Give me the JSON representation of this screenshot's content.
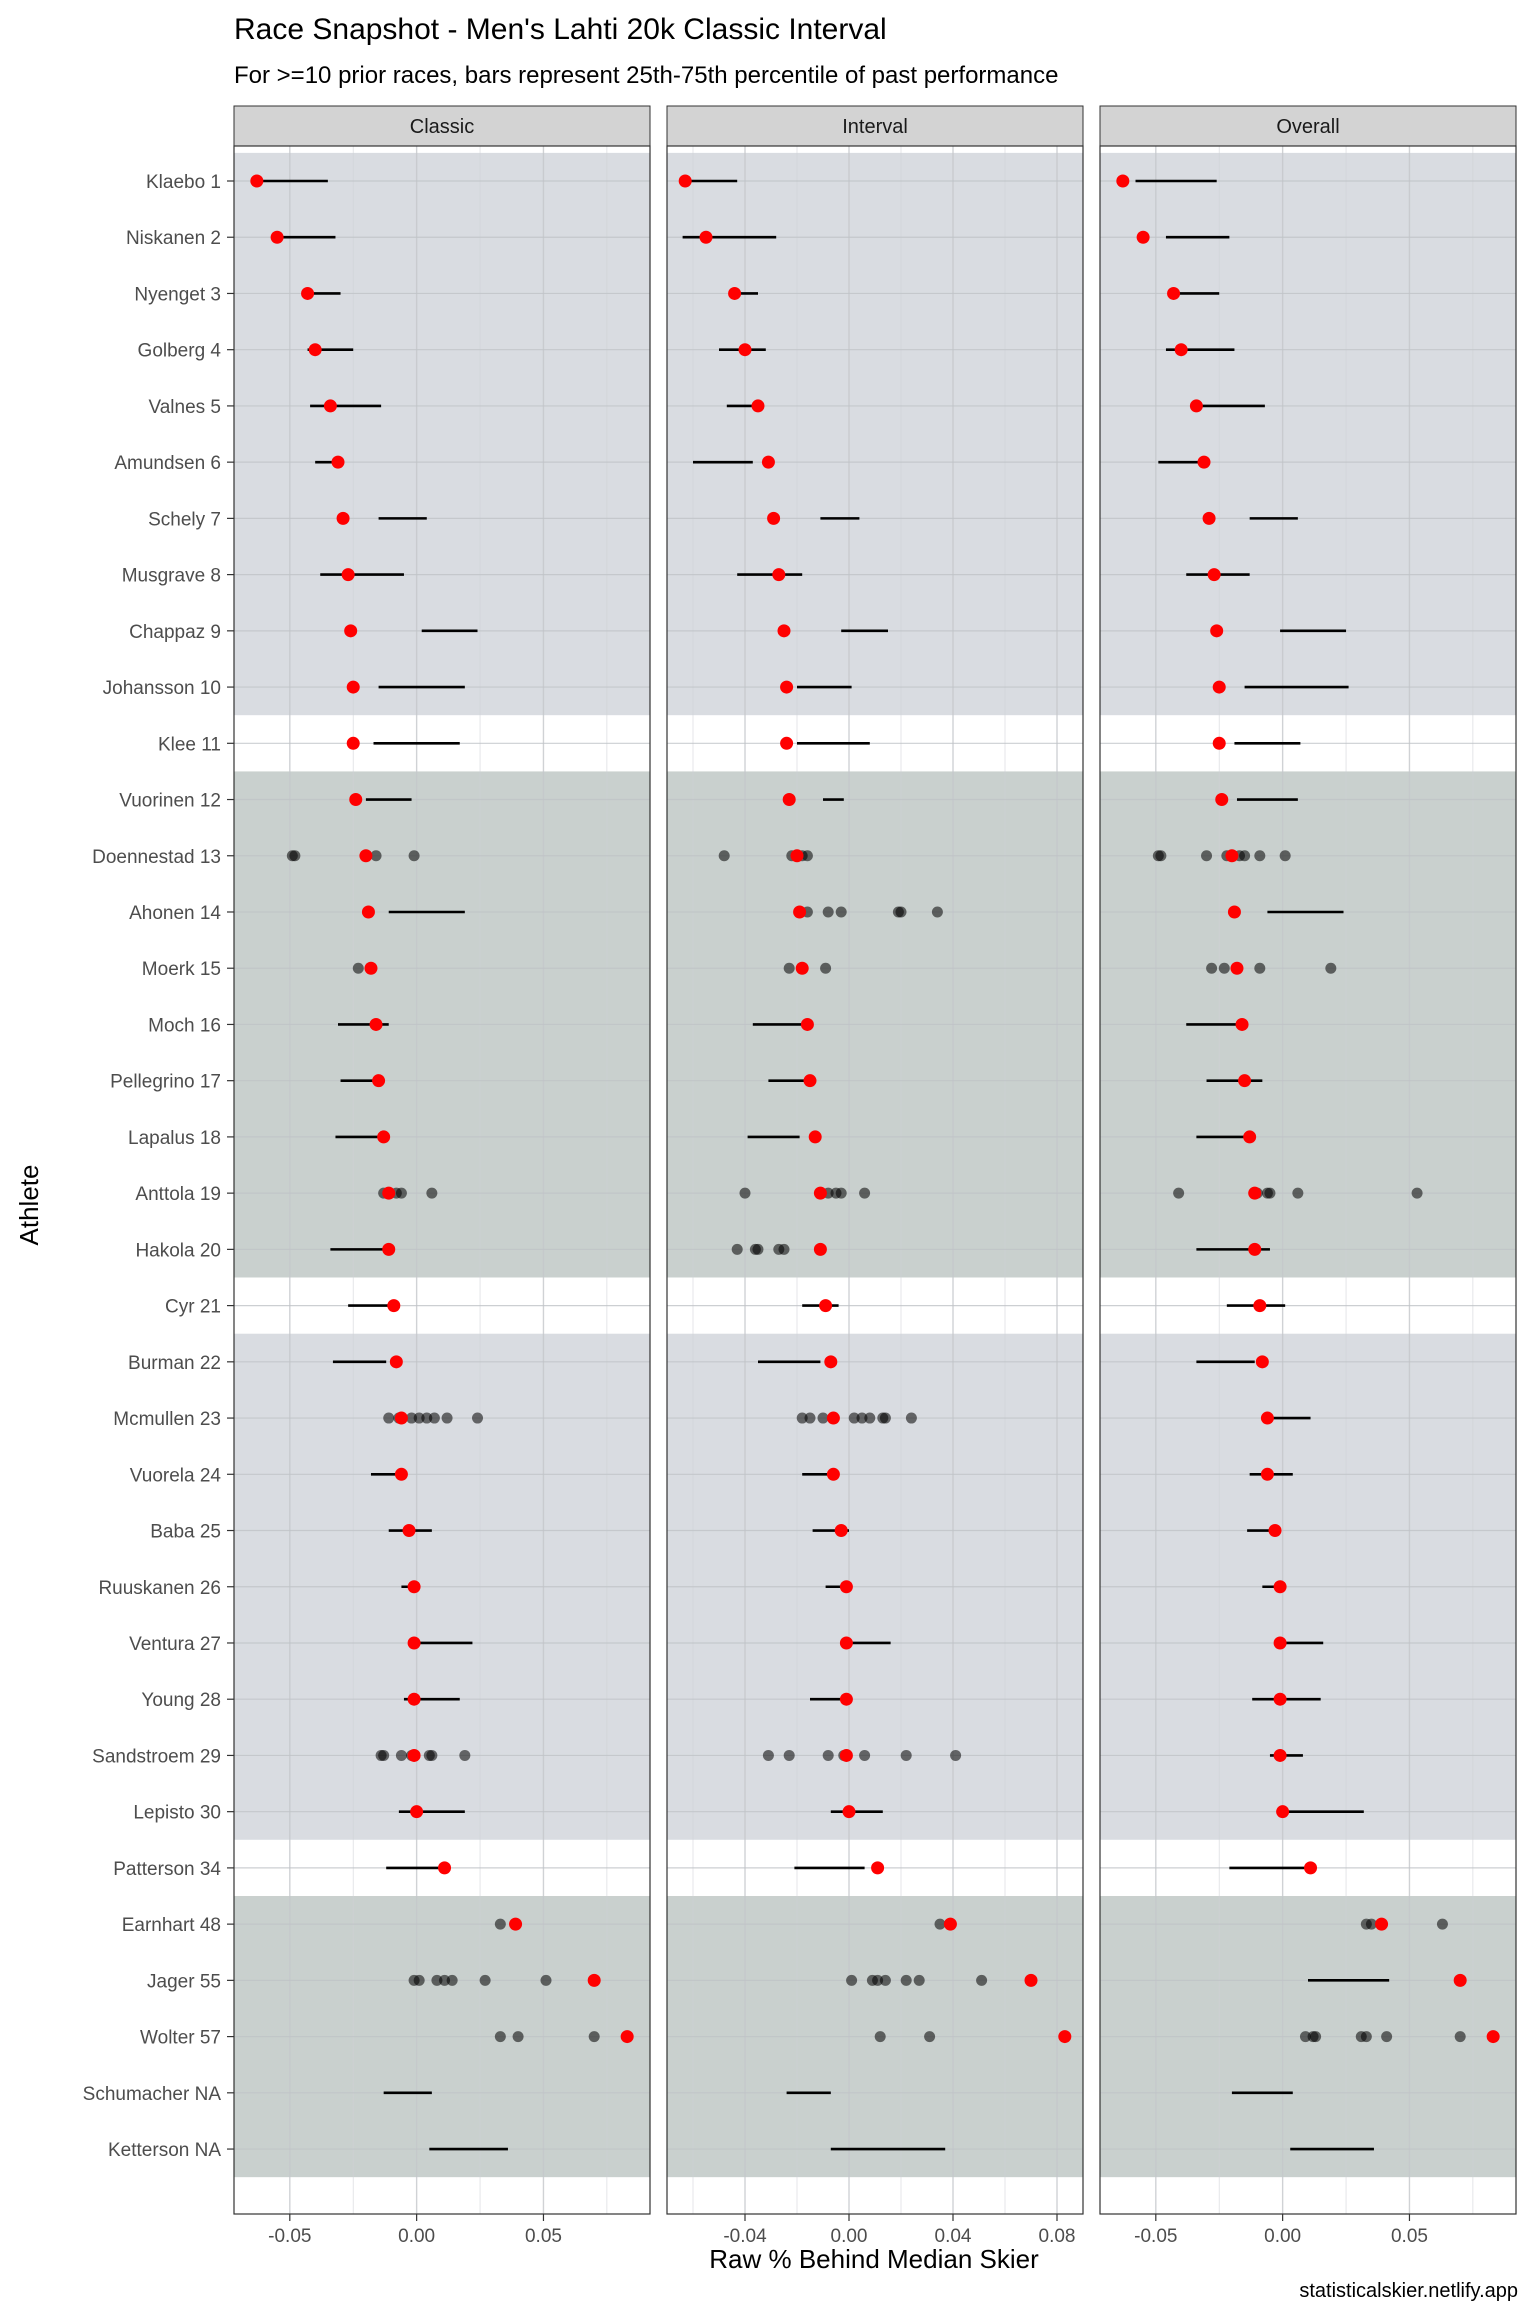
{
  "title": "Race Snapshot -  Men's Lahti 20k Classic Interval",
  "subtitle": "For >=10 prior races, bars represent 25th-75th percentile of past performance",
  "caption": "statisticalskier.netlify.app",
  "colors": {
    "race_point": "#ff0000",
    "past_point": "#000000",
    "band_a": "#d9dce1",
    "band_b": "#c9d0ce",
    "strip": "#d3d3d3",
    "grid": "#e6e6e6"
  },
  "chart_data": {
    "type": "scatter",
    "xlabel": "Raw % Behind Median Skier",
    "ylabel": "Athlete",
    "athletes": [
      "Klaebo 1",
      "Niskanen 2",
      "Nyenget 3",
      "Golberg 4",
      "Valnes 5",
      "Amundsen 6",
      "Schely 7",
      "Musgrave 8",
      "Chappaz 9",
      "Johansson 10",
      "Klee 11",
      "Vuorinen 12",
      "Doennestad 13",
      "Ahonen 14",
      "Moerk 15",
      "Moch 16",
      "Pellegrino 17",
      "Lapalus 18",
      "Anttola 19",
      "Hakola 20",
      "Cyr 21",
      "Burman 22",
      "Mcmullen 23",
      "Vuorela 24",
      "Baba 25",
      "Ruuskanen 26",
      "Ventura 27",
      "Young 28",
      "Sandstroem 29",
      "Lepisto 30",
      "Patterson 34",
      "Earnhart 48",
      "Jager 55",
      "Wolter 57",
      "Schumacher NA",
      "Ketterson NA"
    ],
    "bands": [
      {
        "from": 0,
        "to": 9,
        "shade": "a"
      },
      {
        "from": 11,
        "to": 19,
        "shade": "b"
      },
      {
        "from": 21,
        "to": 29,
        "shade": "a"
      },
      {
        "from": 31,
        "to": 35,
        "shade": "b"
      }
    ],
    "panels": [
      {
        "name": "Classic",
        "xlim": [
          -0.072,
          0.092
        ],
        "ticks": [
          -0.05,
          0.0,
          0.05
        ],
        "tick_labels": [
          "-0.05",
          "0.00",
          "0.05"
        ],
        "minor": [
          -0.025,
          0.025,
          0.075
        ],
        "race": [
          -0.063,
          -0.055,
          -0.043,
          -0.04,
          -0.034,
          -0.031,
          -0.029,
          -0.027,
          -0.026,
          -0.025,
          -0.025,
          -0.024,
          -0.02,
          -0.019,
          -0.018,
          -0.016,
          -0.015,
          -0.013,
          -0.011,
          -0.011,
          -0.009,
          -0.008,
          -0.006,
          -0.006,
          -0.003,
          -0.001,
          -0.001,
          -0.001,
          -0.001,
          0.0,
          0.011,
          0.039,
          0.07,
          0.083,
          null,
          null
        ],
        "ranges": [
          [
            -0.063,
            -0.035
          ],
          [
            -0.055,
            -0.032
          ],
          [
            -0.043,
            -0.03
          ],
          [
            -0.043,
            -0.025
          ],
          [
            -0.042,
            -0.014
          ],
          [
            -0.04,
            -0.031
          ],
          [
            -0.015,
            0.004
          ],
          [
            -0.038,
            -0.005
          ],
          [
            0.002,
            0.024
          ],
          [
            -0.015,
            0.019
          ],
          [
            -0.017,
            0.017
          ],
          [
            -0.02,
            -0.002
          ],
          null,
          [
            -0.011,
            0.019
          ],
          null,
          [
            -0.031,
            -0.011
          ],
          [
            -0.03,
            -0.013
          ],
          [
            -0.032,
            -0.011
          ],
          null,
          [
            -0.034,
            -0.011
          ],
          [
            -0.027,
            -0.007
          ],
          [
            -0.033,
            -0.012
          ],
          null,
          [
            -0.018,
            -0.006
          ],
          [
            -0.011,
            0.006
          ],
          [
            -0.006,
            0.001
          ],
          [
            -0.001,
            0.022
          ],
          [
            -0.005,
            0.017
          ],
          null,
          [
            -0.007,
            0.019
          ],
          [
            -0.012,
            0.011
          ],
          null,
          null,
          null,
          [
            -0.013,
            0.006
          ],
          [
            0.005,
            0.036
          ]
        ],
        "past": {
          "12": [
            -0.049,
            -0.048,
            -0.016,
            -0.001
          ],
          "14": [
            -0.023
          ],
          "18": [
            -0.013,
            -0.008,
            -0.006,
            0.006
          ],
          "22": [
            -0.011,
            -0.007,
            -0.002,
            0.001,
            0.004,
            0.007,
            0.012,
            0.024
          ],
          "28": [
            -0.014,
            -0.013,
            -0.006,
            -0.002,
            -0.001,
            0.005,
            0.006,
            0.019
          ],
          "31": [
            0.033
          ],
          "32": [
            -0.001,
            0.001,
            0.008,
            0.011,
            0.014,
            0.027,
            0.051
          ],
          "33": [
            0.033,
            0.04,
            0.07
          ]
        }
      },
      {
        "name": "Interval",
        "xlim": [
          -0.07,
          0.09
        ],
        "ticks": [
          -0.04,
          0.0,
          0.04,
          0.08
        ],
        "tick_labels": [
          "-0.04",
          "0.00",
          "0.04",
          "0.08"
        ],
        "minor": [
          -0.06,
          -0.02,
          0.02,
          0.06
        ],
        "race": [
          -0.063,
          -0.055,
          -0.044,
          -0.04,
          -0.035,
          -0.031,
          -0.029,
          -0.027,
          -0.025,
          -0.024,
          -0.024,
          -0.023,
          -0.02,
          -0.019,
          -0.018,
          -0.016,
          -0.015,
          -0.013,
          -0.011,
          -0.011,
          -0.009,
          -0.007,
          -0.006,
          -0.006,
          -0.003,
          -0.001,
          -0.001,
          -0.001,
          -0.001,
          0.0,
          0.011,
          0.039,
          0.07,
          0.083,
          null,
          null
        ],
        "ranges": [
          [
            -0.063,
            -0.043
          ],
          [
            -0.064,
            -0.028
          ],
          [
            -0.046,
            -0.035
          ],
          [
            -0.05,
            -0.032
          ],
          [
            -0.047,
            -0.034
          ],
          [
            -0.06,
            -0.037
          ],
          [
            -0.011,
            0.004
          ],
          [
            -0.043,
            -0.018
          ],
          [
            -0.003,
            0.015
          ],
          [
            -0.02,
            0.001
          ],
          [
            -0.02,
            0.008
          ],
          [
            -0.01,
            -0.002
          ],
          null,
          null,
          null,
          [
            -0.037,
            -0.015
          ],
          [
            -0.031,
            -0.016
          ],
          [
            -0.039,
            -0.019
          ],
          null,
          null,
          [
            -0.018,
            -0.004
          ],
          [
            -0.035,
            -0.011
          ],
          null,
          [
            -0.018,
            -0.006
          ],
          [
            -0.014,
            0.0
          ],
          [
            -0.009,
            -0.001
          ],
          [
            -0.001,
            0.016
          ],
          [
            -0.015,
            -0.001
          ],
          null,
          [
            -0.007,
            0.013
          ],
          [
            -0.021,
            0.006
          ],
          null,
          null,
          null,
          [
            -0.024,
            -0.007
          ],
          [
            -0.007,
            0.037
          ]
        ],
        "past": {
          "12": [
            -0.048,
            -0.022,
            -0.018,
            -0.016
          ],
          "13": [
            -0.016,
            -0.008,
            -0.003,
            0.019,
            0.02,
            0.034
          ],
          "14": [
            -0.023,
            -0.009
          ],
          "18": [
            -0.04,
            -0.011,
            -0.008,
            -0.005,
            -0.003,
            0.006
          ],
          "19": [
            -0.043,
            -0.036,
            -0.035,
            -0.027,
            -0.025,
            -0.011
          ],
          "22": [
            -0.018,
            -0.015,
            -0.01,
            0.002,
            0.005,
            0.008,
            0.013,
            0.014,
            0.024
          ],
          "28": [
            -0.031,
            -0.023,
            -0.008,
            -0.002,
            -0.001,
            0.006,
            0.022,
            0.041
          ],
          "31": [
            0.035
          ],
          "32": [
            0.001,
            0.009,
            0.011,
            0.014,
            0.022,
            0.027,
            0.051
          ],
          "33": [
            0.012,
            0.031
          ]
        }
      },
      {
        "name": "Overall",
        "xlim": [
          -0.072,
          0.092
        ],
        "ticks": [
          -0.05,
          0.0,
          0.05
        ],
        "tick_labels": [
          "-0.05",
          "0.00",
          "0.05"
        ],
        "minor": [
          -0.025,
          0.025,
          0.075
        ],
        "race": [
          -0.063,
          -0.055,
          -0.043,
          -0.04,
          -0.034,
          -0.031,
          -0.029,
          -0.027,
          -0.026,
          -0.025,
          -0.025,
          -0.024,
          -0.02,
          -0.019,
          -0.018,
          -0.016,
          -0.015,
          -0.013,
          -0.011,
          -0.011,
          -0.009,
          -0.008,
          -0.006,
          -0.006,
          -0.003,
          -0.001,
          -0.001,
          -0.001,
          -0.001,
          0.0,
          0.011,
          0.039,
          0.07,
          0.083,
          null,
          null
        ],
        "ranges": [
          [
            -0.058,
            -0.026
          ],
          [
            -0.046,
            -0.021
          ],
          [
            -0.043,
            -0.025
          ],
          [
            -0.046,
            -0.019
          ],
          [
            -0.036,
            -0.007
          ],
          [
            -0.049,
            -0.031
          ],
          [
            -0.013,
            0.006
          ],
          [
            -0.038,
            -0.013
          ],
          [
            -0.001,
            0.025
          ],
          [
            -0.015,
            0.026
          ],
          [
            -0.019,
            0.007
          ],
          [
            -0.018,
            0.006
          ],
          null,
          [
            -0.006,
            0.024
          ],
          null,
          [
            -0.038,
            -0.016
          ],
          [
            -0.03,
            -0.008
          ],
          [
            -0.034,
            -0.013
          ],
          null,
          [
            -0.034,
            -0.005
          ],
          [
            -0.022,
            0.001
          ],
          [
            -0.034,
            -0.011
          ],
          [
            -0.006,
            0.011
          ],
          [
            -0.013,
            0.004
          ],
          [
            -0.014,
            -0.001
          ],
          [
            -0.008,
            0.001
          ],
          [
            -0.001,
            0.016
          ],
          [
            -0.012,
            0.015
          ],
          [
            -0.005,
            0.008
          ],
          [
            -0.001,
            0.032
          ],
          [
            -0.021,
            0.01
          ],
          null,
          [
            0.01,
            0.042
          ],
          null,
          [
            -0.02,
            0.004
          ],
          [
            0.003,
            0.036
          ]
        ],
        "past": {
          "12": [
            -0.049,
            -0.048,
            -0.03,
            -0.022,
            -0.017,
            -0.015,
            -0.009,
            0.001
          ],
          "14": [
            -0.028,
            -0.023,
            -0.009,
            0.019
          ],
          "18": [
            -0.041,
            -0.011,
            -0.01,
            -0.006,
            -0.005,
            0.006,
            0.053
          ],
          "31": [
            0.033,
            0.035,
            0.063
          ],
          "33": [
            0.009,
            0.012,
            0.013,
            0.031,
            0.033,
            0.041,
            0.07
          ]
        }
      }
    ]
  }
}
